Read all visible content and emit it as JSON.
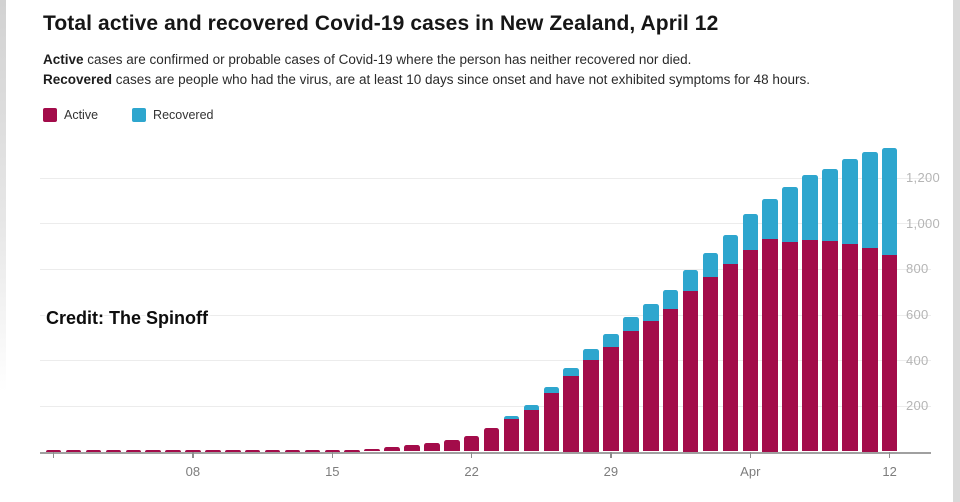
{
  "header": {
    "title": "Total active and recovered Covid-19 cases in New Zealand, April 12",
    "subtitle1_bold": "Active",
    "subtitle1_rest": " cases are confirmed or probable cases of Covid-19 where the person has neither recovered nor died.",
    "subtitle2_bold": "Recovered",
    "subtitle2_rest": " cases are people who had the virus, are at least 10 days since onset and have not exhibited symptoms for 48 hours."
  },
  "legend": {
    "items": [
      {
        "label": "Active",
        "color": "#a30c4a"
      },
      {
        "label": "Recovered",
        "color": "#2ea6ce"
      }
    ]
  },
  "credit": {
    "text": "Credit: The Spinoff"
  },
  "chart_data": {
    "type": "bar",
    "stacked": true,
    "title": "Total active and recovered Covid-19 cases in New Zealand, April 12",
    "xlabel": "",
    "ylabel": "",
    "ylim": [
      0,
      1330
    ],
    "grid": "horizontal",
    "legend_position": "top-left",
    "categories": [
      "Mar 1",
      "Mar 2",
      "Mar 3",
      "Mar 4",
      "Mar 5",
      "Mar 6",
      "Mar 7",
      "Mar 8",
      "Mar 9",
      "Mar 10",
      "Mar 11",
      "Mar 12",
      "Mar 13",
      "Mar 14",
      "Mar 15",
      "Mar 16",
      "Mar 17",
      "Mar 18",
      "Mar 19",
      "Mar 20",
      "Mar 21",
      "Mar 22",
      "Mar 23",
      "Mar 24",
      "Mar 25",
      "Mar 26",
      "Mar 27",
      "Mar 28",
      "Mar 29",
      "Mar 30",
      "Mar 31",
      "Apr 1",
      "Apr 2",
      "Apr 3",
      "Apr 4",
      "Apr 5",
      "Apr 6",
      "Apr 7",
      "Apr 8",
      "Apr 9",
      "Apr 10",
      "Apr 11",
      "Apr 12"
    ],
    "series": [
      {
        "name": "Active",
        "color": "#a30c4a",
        "values": [
          1,
          1,
          1,
          2,
          3,
          4,
          5,
          5,
          5,
          5,
          5,
          5,
          5,
          6,
          8,
          8,
          12,
          20,
          28,
          39,
          52,
          66,
          102,
          143,
          183,
          256,
          331,
          401,
          458,
          526,
          573,
          626,
          705,
          765,
          823,
          883,
          930,
          919,
          928,
          922,
          910,
          890,
          859
        ]
      },
      {
        "name": "Recovered",
        "color": "#2ea6ce",
        "values": [
          0,
          0,
          0,
          0,
          0,
          0,
          0,
          0,
          0,
          0,
          0,
          0,
          0,
          0,
          0,
          0,
          0,
          0,
          0,
          0,
          0,
          0,
          0,
          12,
          22,
          27,
          37,
          50,
          56,
          63,
          74,
          82,
          92,
          103,
          127,
          156,
          176,
          241,
          282,
          317,
          373,
          422,
          471
        ]
      }
    ],
    "x_ticks": [
      {
        "day": 0,
        "label": ""
      },
      {
        "day": 7,
        "label": "08"
      },
      {
        "day": 14,
        "label": "15"
      },
      {
        "day": 21,
        "label": "22"
      },
      {
        "day": 28,
        "label": "29"
      },
      {
        "day": 35,
        "label": "Apr"
      },
      {
        "day": 42,
        "label": "12"
      }
    ],
    "y_ticks": [
      {
        "value": 200,
        "label": "200"
      },
      {
        "value": 400,
        "label": "400"
      },
      {
        "value": 600,
        "label": "600"
      },
      {
        "value": 800,
        "label": "800"
      },
      {
        "value": 1000,
        "label": "1,000"
      },
      {
        "value": 1200,
        "label": "1,200"
      }
    ],
    "colors": {
      "gridline": "#ececec",
      "axis": "#a0a0a0",
      "tick": "#8c8c8c",
      "x_label": "#7d7d7d",
      "y_label": "#b5b5b5",
      "frame": "#d9d9d9"
    }
  }
}
